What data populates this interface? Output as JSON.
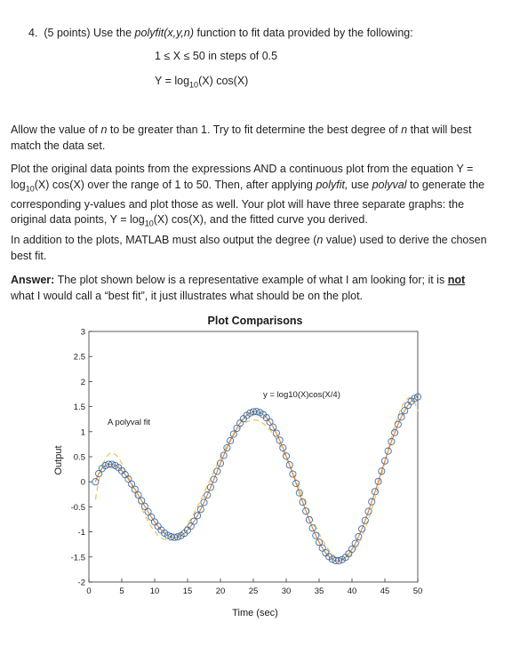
{
  "question": {
    "number": "4.",
    "points": "(5 points) Use the",
    "func": "polyfit(x,y,n)",
    "rest": "function to fit data provided by the following:"
  },
  "equations": {
    "range": "1 ≤ X ≤ 50 in steps of 0.5",
    "y_pre": "Y = log",
    "y_sub": "10",
    "y_post": "(X) cos(X)"
  },
  "para1": {
    "a": "Allow the value of",
    "n": "n",
    "b": "to be greater than 1. Try to fit determine the best degree of",
    "n2": "n",
    "c": "that will best match the data set."
  },
  "para2": {
    "a": "Plot the original data points from the expressions AND a continuous plot from the equation Y = log",
    "sub1": "10",
    "b": "(X) cos(X) over the range of 1 to 50.  Then, after applying",
    "polyfit": "polyfit,",
    "c": "use",
    "polyval": "polyval",
    "d": "to generate the corresponding y-values and plot those as well. Your plot will have three separate graphs: the original data points, Y = log",
    "sub2": "10",
    "e": "(X) cos(X), and the fitted curve you derived."
  },
  "para3": {
    "a": "In addition to the plots, MATLAB must also output the degree (",
    "n": "n",
    "b": "value) used to derive the chosen best fit."
  },
  "para4": {
    "label": "Answer:",
    "a": "The plot shown below is a representative example of what I am looking for; it is",
    "not": "not",
    "b": "what I would call a “best fit”, it just illustrates what should be on the plot."
  },
  "chart_data": {
    "type": "line",
    "title": "Plot Comparisons",
    "xlabel": "Time (sec)",
    "ylabel": "Output",
    "xlim": [
      0,
      50
    ],
    "ylim": [
      -2,
      3
    ],
    "xticks": [
      0,
      5,
      10,
      15,
      20,
      25,
      30,
      35,
      40,
      45,
      50
    ],
    "yticks": [
      -2,
      -1.5,
      -1,
      -0.5,
      0,
      0.5,
      1,
      1.5,
      2,
      2.5,
      3
    ],
    "grid": false,
    "series": [
      {
        "name": "y = log10(X)cos(X/4)",
        "style": "orange-solid-line",
        "color": "#e8833a"
      },
      {
        "name": "data points",
        "style": "blue-circle-markers",
        "color": "#3a6ea8"
      },
      {
        "name": "A polyval fit",
        "style": "yellow-dashed-line",
        "color": "#f0c04a"
      }
    ],
    "annotations": [
      {
        "text": "y = log10(X)cos(X/4)",
        "x": 32,
        "y": 2.05
      },
      {
        "text": "A polyval fit",
        "x": 3,
        "y": 1.3
      }
    ]
  }
}
